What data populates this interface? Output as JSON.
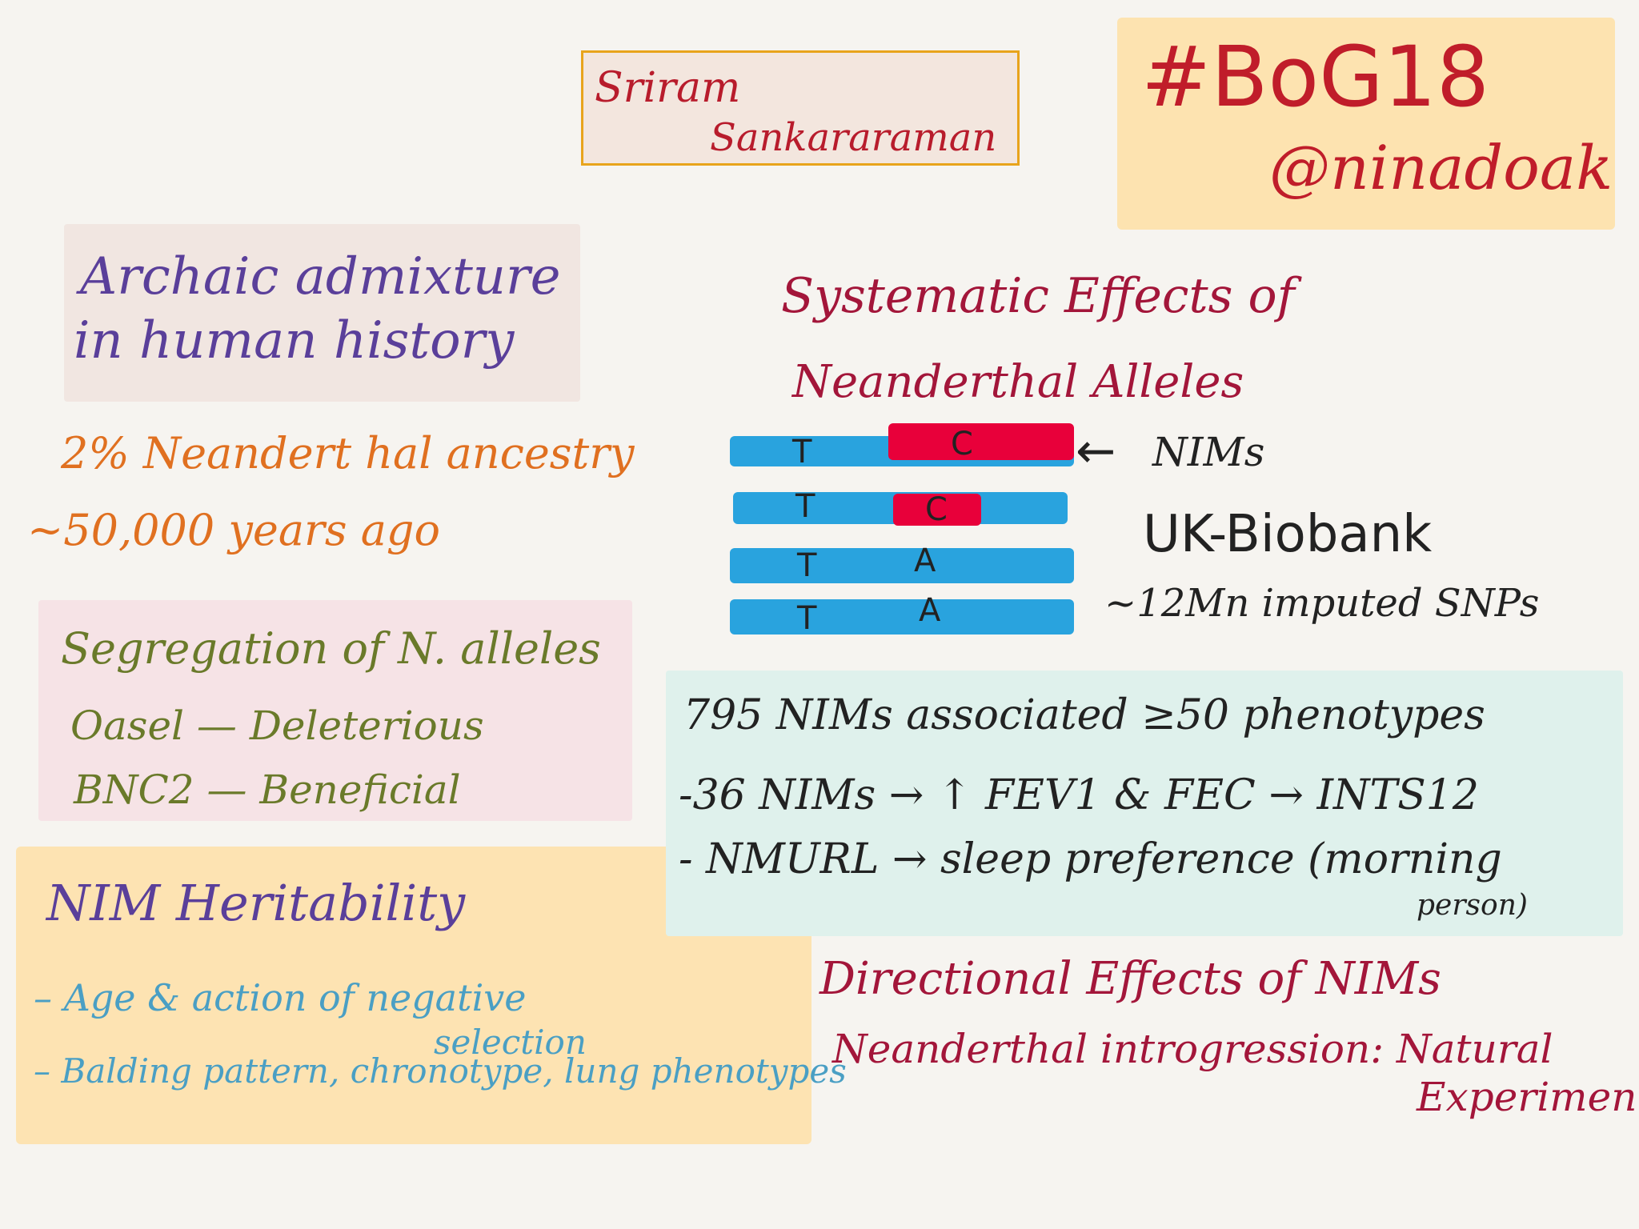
{
  "colors": {
    "speaker_border": "#e8a41c",
    "speaker_fill": "#f3e6de",
    "tag_fill": "#fde3b0",
    "title_fill": "#f1e6e1",
    "segregation_fill": "#f6e3e6",
    "heritability_fill": "#fde3b2",
    "findings_fill": "#dff1ec",
    "chromosome_blue": "#29a3de",
    "neanderthal_red": "#e8003a",
    "maroon_text": "#a3163a",
    "purple_text": "#5a3f9a",
    "orange_text": "#e07020",
    "olive_text": "#6a7a2a",
    "teal_text": "#4a9fc4"
  },
  "speaker": {
    "first": "Sriram",
    "last": "Sankararaman"
  },
  "event": {
    "hashtag": "#BoG18",
    "handle": "@ninadoak"
  },
  "main_title": {
    "line1": "Archaic admixture",
    "line2": "in human history"
  },
  "facts": {
    "ancestry": "2% Neandert hal ancestry",
    "time": "~50,000 years ago"
  },
  "segregation": {
    "title": "Segregation of N. alleles",
    "item1": "Oasel — Deleterious",
    "item2": "BNC2 — Beneficial"
  },
  "heritability": {
    "title": "NIM Heritability",
    "item1_line1": "– Age & action of negative",
    "item1_line2": "selection",
    "item2": "– Balding pattern, chronotype, lung phenotypes"
  },
  "section": {
    "title_line1": "Systematic Effects of",
    "title_line2": "Neanderthal Alleles"
  },
  "chromosomes": [
    {
      "left": "T",
      "right": "C",
      "has_nim": true
    },
    {
      "left": "T",
      "right": "C",
      "has_nim": true
    },
    {
      "left": "T",
      "right": "A",
      "has_nim": false
    },
    {
      "left": "T",
      "right": "A",
      "has_nim": false
    }
  ],
  "annotations": {
    "nims": "NIMs",
    "arrow": "←",
    "biobank": "UK-Biobank",
    "snps": "~12Mn imputed SNPs"
  },
  "findings": {
    "line1": "795 NIMs associated ≥50 phenotypes",
    "line2": "-36 NIMs → ↑ FEV1 & FEC → INTS12",
    "line3": "- NMURL → sleep preference (morning",
    "line3b": "person)"
  },
  "closing": {
    "directional": "Directional Effects of NIMs",
    "introgression": "Neanderthal introgression: Natural",
    "experiment": "Experiment"
  }
}
